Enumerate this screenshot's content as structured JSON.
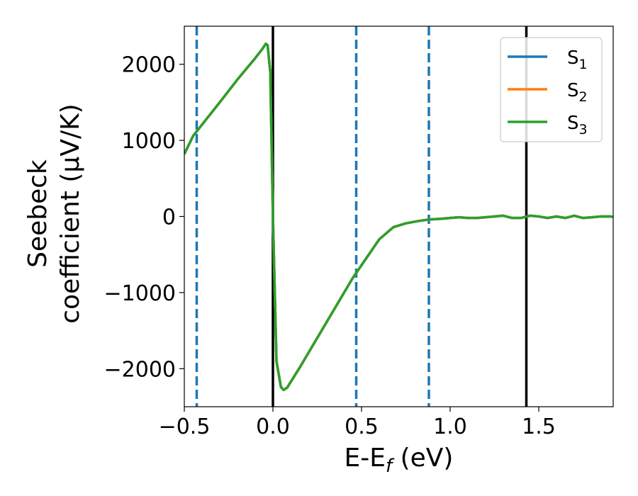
{
  "chart_data": {
    "type": "line",
    "xlabel": "E-E",
    "xlabel_sub": "f",
    "xlabel_unit": " (eV)",
    "ylabel_line1": "Seebeck",
    "ylabel_line2": "coefficient  (μV/K)",
    "xlim": [
      -0.5,
      1.92
    ],
    "ylim": [
      -2500,
      2500
    ],
    "x_ticks": [
      -0.5,
      0.0,
      0.5,
      1.0,
      1.5
    ],
    "x_tick_labels": [
      "−0.5",
      "0.0",
      "0.5",
      "1.0",
      "1.5"
    ],
    "y_ticks": [
      -2000,
      -1000,
      0,
      1000,
      2000
    ],
    "y_tick_labels": [
      "−2000",
      "−1000",
      "0",
      "1000",
      "2000"
    ],
    "grid": false,
    "legend_position": "top-right",
    "series": [
      {
        "name": "S",
        "sub": "1",
        "color": "#1f77b4",
        "x": [
          -0.5,
          -0.45,
          -0.3,
          -0.2,
          -0.1,
          -0.06,
          -0.04,
          -0.03,
          -0.015,
          0.0,
          0.02,
          0.045,
          0.06,
          0.08,
          0.15,
          0.3,
          0.45,
          0.6,
          0.68,
          0.75,
          0.82,
          0.88,
          0.95,
          1.0,
          1.05,
          1.1,
          1.15,
          1.2,
          1.25,
          1.3,
          1.35,
          1.4,
          1.45,
          1.5,
          1.55,
          1.6,
          1.65,
          1.7,
          1.75,
          1.8,
          1.85,
          1.9,
          1.92
        ],
        "y": [
          820,
          1060,
          1500,
          1800,
          2080,
          2200,
          2270,
          2250,
          1900,
          0,
          -1900,
          -2240,
          -2280,
          -2250,
          -1990,
          -1400,
          -810,
          -300,
          -140,
          -90,
          -60,
          -40,
          -30,
          -20,
          -10,
          -20,
          -20,
          -10,
          0,
          10,
          -20,
          -20,
          10,
          0,
          -20,
          0,
          -20,
          10,
          -20,
          -10,
          0,
          0,
          -5
        ]
      },
      {
        "name": "S",
        "sub": "2",
        "color": "#ff7f0e",
        "x": [
          -0.5,
          -0.45,
          -0.3,
          -0.2,
          -0.1,
          -0.06,
          -0.04,
          -0.03,
          -0.015,
          0.0,
          0.02,
          0.045,
          0.06,
          0.08,
          0.15,
          0.3,
          0.45,
          0.6,
          0.68,
          0.75,
          0.82,
          0.88,
          0.95,
          1.0,
          1.05,
          1.1,
          1.15,
          1.2,
          1.25,
          1.3,
          1.35,
          1.4,
          1.45,
          1.5,
          1.55,
          1.6,
          1.65,
          1.7,
          1.75,
          1.8,
          1.85,
          1.9,
          1.92
        ],
        "y": [
          820,
          1060,
          1500,
          1800,
          2080,
          2200,
          2270,
          2250,
          1900,
          0,
          -1900,
          -2240,
          -2280,
          -2250,
          -1990,
          -1400,
          -810,
          -300,
          -140,
          -90,
          -60,
          -40,
          -30,
          -20,
          -10,
          -20,
          -20,
          -10,
          0,
          10,
          -20,
          -20,
          10,
          0,
          -20,
          0,
          -20,
          10,
          -20,
          -10,
          0,
          0,
          -5
        ]
      },
      {
        "name": "S",
        "sub": "3",
        "color": "#2ca02c",
        "x": [
          -0.5,
          -0.45,
          -0.3,
          -0.2,
          -0.1,
          -0.06,
          -0.04,
          -0.03,
          -0.015,
          0.0,
          0.02,
          0.045,
          0.06,
          0.08,
          0.15,
          0.3,
          0.45,
          0.6,
          0.68,
          0.75,
          0.82,
          0.88,
          0.95,
          1.0,
          1.05,
          1.1,
          1.15,
          1.2,
          1.25,
          1.3,
          1.35,
          1.4,
          1.45,
          1.5,
          1.55,
          1.6,
          1.65,
          1.7,
          1.75,
          1.8,
          1.85,
          1.9,
          1.92
        ],
        "y": [
          820,
          1060,
          1500,
          1800,
          2080,
          2200,
          2270,
          2250,
          1900,
          0,
          -1900,
          -2240,
          -2280,
          -2250,
          -1990,
          -1400,
          -810,
          -300,
          -140,
          -90,
          -60,
          -40,
          -30,
          -20,
          -10,
          -20,
          -20,
          -10,
          0,
          10,
          -20,
          -20,
          10,
          0,
          -20,
          0,
          -20,
          10,
          -20,
          -10,
          0,
          0,
          -5
        ]
      }
    ],
    "vlines": [
      {
        "x": -0.43,
        "style": "dashed",
        "color": "#1f77b4"
      },
      {
        "x": 0.0,
        "style": "solid",
        "color": "#000000"
      },
      {
        "x": 0.47,
        "style": "dashed",
        "color": "#1f77b4"
      },
      {
        "x": 0.88,
        "style": "dashed",
        "color": "#1f77b4"
      },
      {
        "x": 1.43,
        "style": "solid",
        "color": "#000000"
      }
    ]
  }
}
